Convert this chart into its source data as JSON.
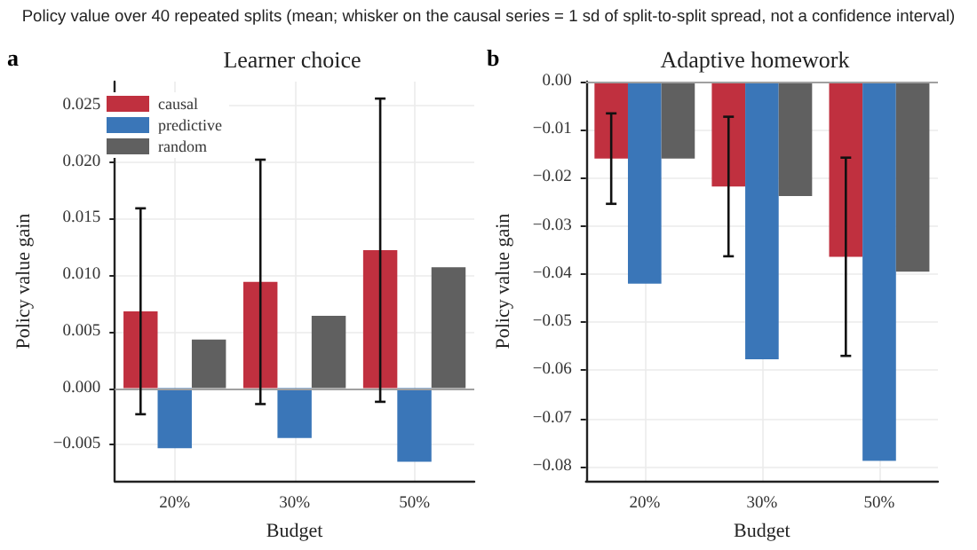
{
  "chart_data": [
    {
      "type": "bar",
      "title": "Learner choice",
      "subtitle": "Policy value over 40 repeated splits (mean; whisker on the causal series = 1 sd of split-to-split spread, not a confidence interval)",
      "annotations": [
        "a"
      ],
      "xlabel": "Budget",
      "ylabel": "Policy value gain",
      "categories": [
        "20%",
        "30%",
        "50%"
      ],
      "series": [
        {
          "name": "causal",
          "color": "#c0303f",
          "values": [
            0.0068,
            0.0094,
            0.0122
          ],
          "errors": [
            0.0091,
            0.0108,
            0.0134
          ]
        },
        {
          "name": "predictive",
          "color": "#3a76b8",
          "values": [
            -0.0053,
            -0.0044,
            -0.0065
          ]
        },
        {
          "name": "random",
          "color": "#606060",
          "values": [
            0.0043,
            0.0064,
            0.0107
          ]
        }
      ],
      "ylim": [
        -0.0082,
        0.0271
      ],
      "yticks": [
        {
          "value": -0.005,
          "label": "−0.005"
        },
        {
          "value": 0,
          "label": "0.000"
        },
        {
          "value": 0.005,
          "label": "0.005"
        },
        {
          "value": 0.01,
          "label": "0.010"
        },
        {
          "value": 0.015,
          "label": "0.015"
        },
        {
          "value": 0.02,
          "label": "0.020"
        },
        {
          "value": 0.025,
          "label": "0.025"
        }
      ],
      "ref_lines": [
        {
          "axis": "y",
          "value": 0,
          "color": "#a0a0a0"
        }
      ],
      "grid": true,
      "legend": "top left"
    },
    {
      "type": "bar",
      "title": "Adaptive homework",
      "annotations": [
        "b"
      ],
      "xlabel": "Budget",
      "ylabel": "Policy value gain",
      "categories": [
        "20%",
        "30%",
        "50%"
      ],
      "series": [
        {
          "color": "#c0303f",
          "values": [
            -0.016,
            -0.0218,
            -0.0364
          ],
          "errors": [
            0.0094,
            0.0145,
            0.0206
          ]
        },
        {
          "color": "#3a76b8",
          "values": [
            -0.042,
            -0.0577,
            -0.0788
          ]
        },
        {
          "color": "#606060",
          "values": [
            -0.016,
            -0.0238,
            -0.0395
          ]
        }
      ],
      "ylim": [
        -0.083,
        0
      ],
      "yticks": [
        {
          "value": -0.08,
          "label": "−0.08"
        },
        {
          "value": -0.07,
          "label": "−0.07"
        },
        {
          "value": -0.06,
          "label": "−0.06"
        },
        {
          "value": -0.05,
          "label": "−0.05"
        },
        {
          "value": -0.04,
          "label": "−0.04"
        },
        {
          "value": -0.03,
          "label": "−0.03"
        },
        {
          "value": -0.02,
          "label": "−0.02"
        },
        {
          "value": -0.01,
          "label": "−0.01"
        },
        {
          "value": 0,
          "label": "0.00"
        }
      ],
      "ref_lines": [
        {
          "axis": "y",
          "value": 0,
          "color": "#a0a0a0"
        }
      ],
      "grid": true,
      "legend": false
    }
  ]
}
